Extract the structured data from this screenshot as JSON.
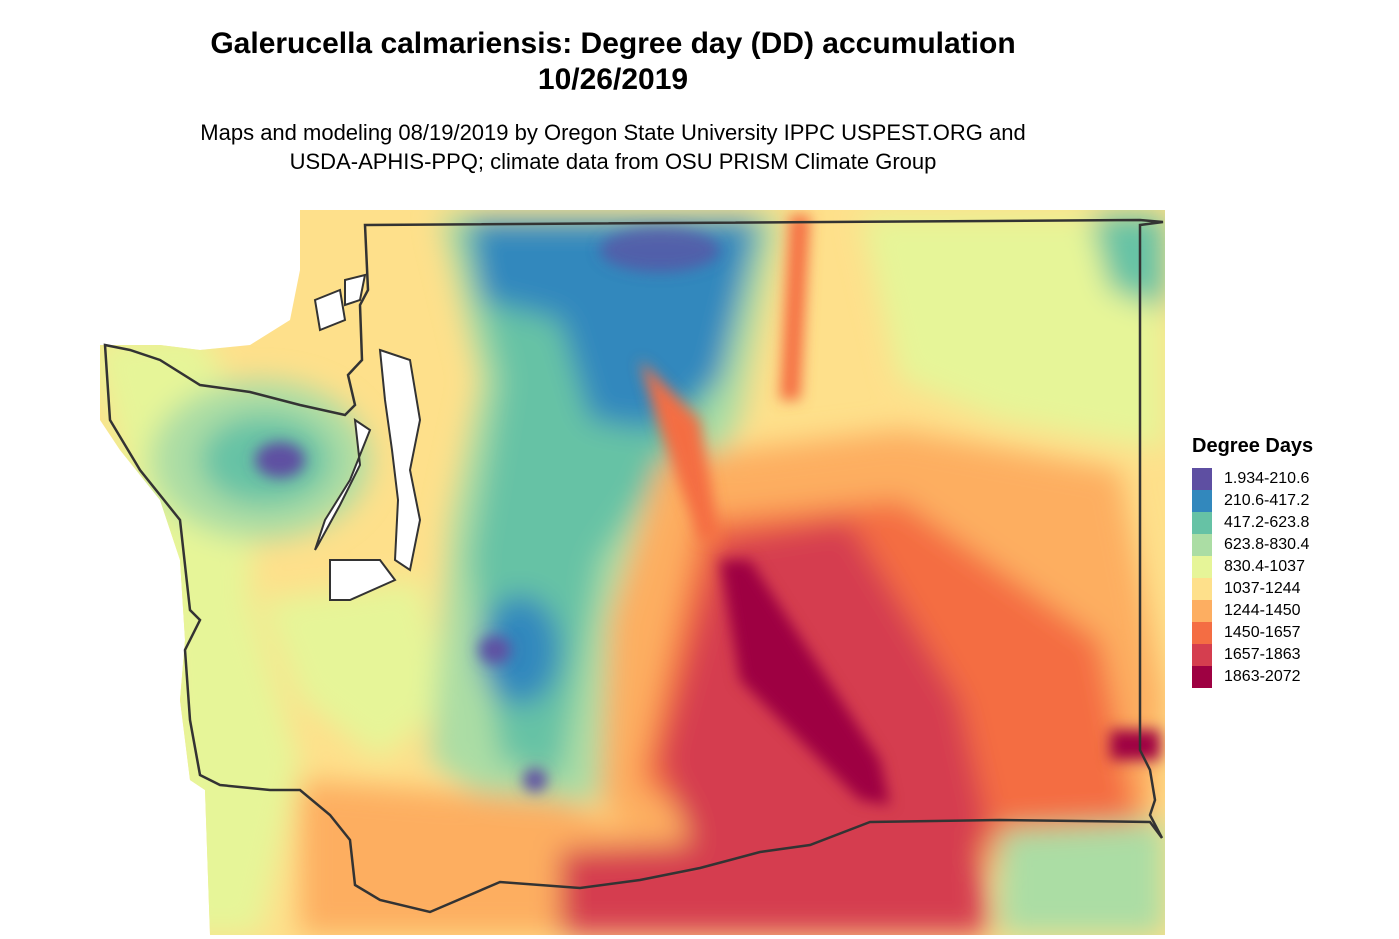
{
  "map": {
    "title_line1": "Galerucella calmariensis: Degree day (DD) accumulation",
    "title_line2": "10/26/2019",
    "subtitle_line1": "Maps and modeling 08/19/2019 by Oregon State University IPPC USPEST.ORG and",
    "subtitle_line2": "USDA-APHIS-PPQ; climate data from OSU PRISM Climate Group",
    "outline_color": "#333333"
  },
  "legend": {
    "title": "Degree Days",
    "items": [
      {
        "label": "1.934-210.6",
        "color": "#5e4fa2"
      },
      {
        "label": "210.6-417.2",
        "color": "#3288bd"
      },
      {
        "label": "417.2-623.8",
        "color": "#66c2a5"
      },
      {
        "label": "623.8-830.4",
        "color": "#abdda4"
      },
      {
        "label": "830.4-1037",
        "color": "#e6f598"
      },
      {
        "label": "1037-1244",
        "color": "#fee08b"
      },
      {
        "label": "1244-1450",
        "color": "#fdae61"
      },
      {
        "label": "1450-1657",
        "color": "#f46d43"
      },
      {
        "label": "1657-1863",
        "color": "#d53e4f"
      },
      {
        "label": "1863-2072",
        "color": "#9e0142"
      }
    ]
  }
}
